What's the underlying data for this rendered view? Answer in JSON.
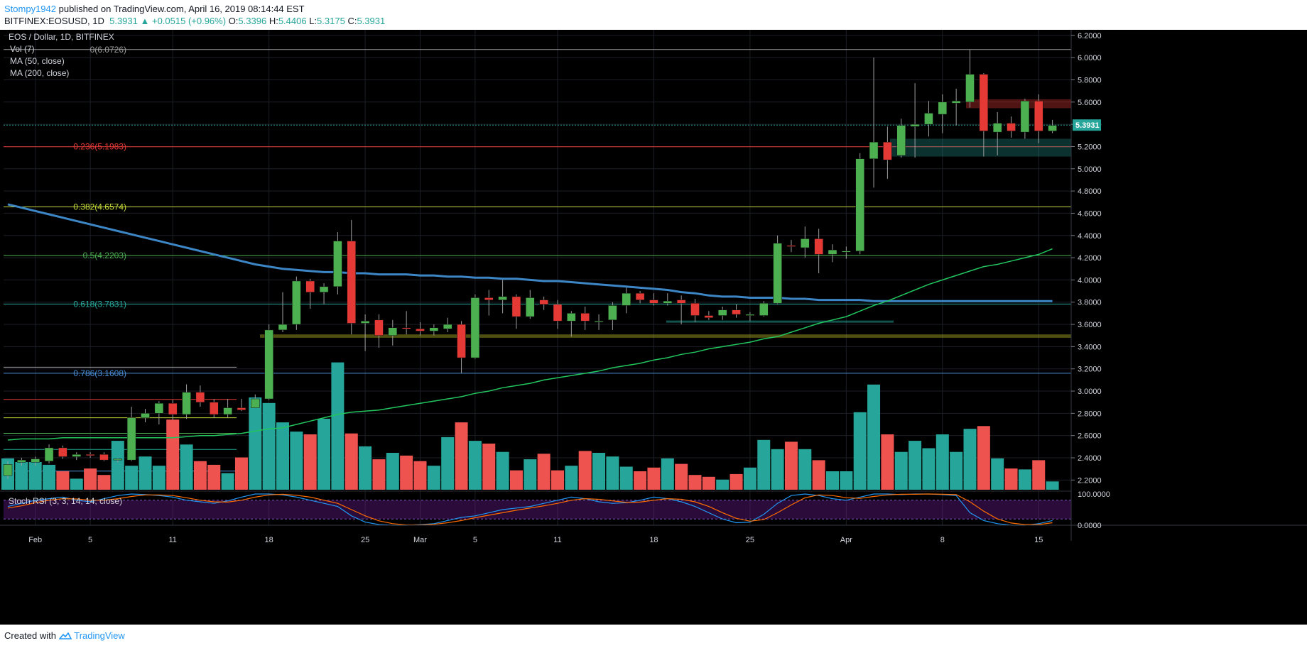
{
  "header": {
    "user": "Stompy1942",
    "published": " published on TradingView.com, April 16, 2019 08:14:44 EST",
    "symbol": "BITFINEX:EOSUSD, 1D",
    "last": "5.3931",
    "change": "▲ +0.0515 (+0.96%)",
    "o_label": "O:",
    "o": "5.3396",
    "h_label": "H:",
    "h": "5.4406",
    "l_label": "L:",
    "l": "5.3175",
    "c_label": "C:",
    "c": "5.3931"
  },
  "legend": {
    "title": "EOS / Dollar, 1D, BITFINEX",
    "vol": "Vol (7)",
    "ma50": "MA (50, close)",
    "ma200": "MA (200, close)",
    "stoch": "Stoch RSI (3, 3, 14, 14, close)"
  },
  "footer": {
    "created": "Created with",
    "brand": "TradingView"
  },
  "colors": {
    "background": "#000000",
    "up": "#4caf50",
    "down": "#e53935",
    "vol_up": "#26a69a",
    "vol_down": "#ef5350",
    "ma50": "#22c55e",
    "ma200": "#3d86c6",
    "price_tag": "#26a69a"
  },
  "chart_data": {
    "type": "candlestick",
    "title": "EOS / Dollar, 1D, BITFINEX",
    "ylim": [
      2.1,
      6.25
    ],
    "y_ticks": [
      "6.2000",
      "6.0000",
      "5.8000",
      "5.6000",
      "5.4000",
      "5.2000",
      "5.0000",
      "4.8000",
      "4.6000",
      "4.4000",
      "4.2000",
      "4.0000",
      "3.8000",
      "3.6000",
      "3.4000",
      "3.2000",
      "3.0000",
      "2.8000",
      "2.6000",
      "2.4000",
      "2.2000"
    ],
    "x_ticks": [
      {
        "label": "Feb",
        "index": 2
      },
      {
        "label": "5",
        "index": 6
      },
      {
        "label": "11",
        "index": 12
      },
      {
        "label": "18",
        "index": 19
      },
      {
        "label": "25",
        "index": 26
      },
      {
        "label": "Mar",
        "index": 30
      },
      {
        "label": "5",
        "index": 34
      },
      {
        "label": "11",
        "index": 40
      },
      {
        "label": "18",
        "index": 47
      },
      {
        "label": "25",
        "index": 54
      },
      {
        "label": "Apr",
        "index": 61
      },
      {
        "label": "8",
        "index": 68
      },
      {
        "label": "15",
        "index": 75
      }
    ],
    "current_price": "5.3931",
    "candles": [
      {
        "o": 2.24,
        "h": 2.37,
        "l": 2.21,
        "c": 2.34
      },
      {
        "o": 2.36,
        "h": 2.4,
        "l": 2.33,
        "c": 2.38
      },
      {
        "o": 2.36,
        "h": 2.41,
        "l": 2.33,
        "c": 2.39
      },
      {
        "o": 2.37,
        "h": 2.52,
        "l": 2.35,
        "c": 2.49
      },
      {
        "o": 2.49,
        "h": 2.51,
        "l": 2.39,
        "c": 2.41
      },
      {
        "o": 2.41,
        "h": 2.45,
        "l": 2.38,
        "c": 2.43
      },
      {
        "o": 2.43,
        "h": 2.45,
        "l": 2.4,
        "c": 2.42
      },
      {
        "o": 2.43,
        "h": 2.45,
        "l": 2.37,
        "c": 2.38
      },
      {
        "o": 2.38,
        "h": 2.4,
        "l": 2.36,
        "c": 2.39
      },
      {
        "o": 2.38,
        "h": 2.86,
        "l": 2.37,
        "c": 2.76
      },
      {
        "o": 2.76,
        "h": 2.84,
        "l": 2.72,
        "c": 2.8
      },
      {
        "o": 2.8,
        "h": 2.91,
        "l": 2.7,
        "c": 2.89
      },
      {
        "o": 2.89,
        "h": 2.92,
        "l": 2.74,
        "c": 2.79
      },
      {
        "o": 2.79,
        "h": 3.06,
        "l": 2.75,
        "c": 2.99
      },
      {
        "o": 2.99,
        "h": 3.05,
        "l": 2.86,
        "c": 2.9
      },
      {
        "o": 2.9,
        "h": 2.93,
        "l": 2.76,
        "c": 2.79
      },
      {
        "o": 2.79,
        "h": 2.93,
        "l": 2.76,
        "c": 2.85
      },
      {
        "o": 2.85,
        "h": 2.93,
        "l": 2.82,
        "c": 2.83
      },
      {
        "o": 2.85,
        "h": 2.97,
        "l": 2.85,
        "c": 2.93
      },
      {
        "o": 2.93,
        "h": 3.6,
        "l": 2.92,
        "c": 3.55
      },
      {
        "o": 3.55,
        "h": 3.89,
        "l": 3.53,
        "c": 3.6
      },
      {
        "o": 3.6,
        "h": 4.03,
        "l": 3.55,
        "c": 3.99
      },
      {
        "o": 3.99,
        "h": 4.01,
        "l": 3.74,
        "c": 3.89
      },
      {
        "o": 3.89,
        "h": 3.97,
        "l": 3.78,
        "c": 3.94
      },
      {
        "o": 3.94,
        "h": 4.43,
        "l": 3.87,
        "c": 4.35
      },
      {
        "o": 4.35,
        "h": 4.54,
        "l": 3.51,
        "c": 3.61
      },
      {
        "o": 3.61,
        "h": 3.69,
        "l": 3.36,
        "c": 3.63
      },
      {
        "o": 3.64,
        "h": 3.69,
        "l": 3.39,
        "c": 3.5
      },
      {
        "o": 3.5,
        "h": 3.64,
        "l": 3.41,
        "c": 3.57
      },
      {
        "o": 3.57,
        "h": 3.72,
        "l": 3.51,
        "c": 3.56
      },
      {
        "o": 3.56,
        "h": 3.62,
        "l": 3.5,
        "c": 3.54
      },
      {
        "o": 3.54,
        "h": 3.6,
        "l": 3.5,
        "c": 3.57
      },
      {
        "o": 3.56,
        "h": 3.66,
        "l": 3.53,
        "c": 3.6
      },
      {
        "o": 3.6,
        "h": 3.63,
        "l": 3.16,
        "c": 3.3
      },
      {
        "o": 3.3,
        "h": 3.87,
        "l": 3.29,
        "c": 3.84
      },
      {
        "o": 3.84,
        "h": 3.91,
        "l": 3.68,
        "c": 3.82
      },
      {
        "o": 3.82,
        "h": 4.0,
        "l": 3.7,
        "c": 3.85
      },
      {
        "o": 3.85,
        "h": 3.87,
        "l": 3.56,
        "c": 3.67
      },
      {
        "o": 3.67,
        "h": 3.91,
        "l": 3.65,
        "c": 3.84
      },
      {
        "o": 3.82,
        "h": 3.85,
        "l": 3.73,
        "c": 3.78
      },
      {
        "o": 3.78,
        "h": 3.82,
        "l": 3.56,
        "c": 3.63
      },
      {
        "o": 3.63,
        "h": 3.72,
        "l": 3.49,
        "c": 3.7
      },
      {
        "o": 3.7,
        "h": 3.76,
        "l": 3.55,
        "c": 3.63
      },
      {
        "o": 3.63,
        "h": 3.69,
        "l": 3.55,
        "c": 3.63
      },
      {
        "o": 3.64,
        "h": 3.8,
        "l": 3.55,
        "c": 3.77
      },
      {
        "o": 3.77,
        "h": 3.93,
        "l": 3.7,
        "c": 3.88
      },
      {
        "o": 3.88,
        "h": 3.9,
        "l": 3.79,
        "c": 3.82
      },
      {
        "o": 3.82,
        "h": 3.88,
        "l": 3.77,
        "c": 3.79
      },
      {
        "o": 3.79,
        "h": 3.88,
        "l": 3.77,
        "c": 3.81
      },
      {
        "o": 3.82,
        "h": 3.86,
        "l": 3.6,
        "c": 3.79
      },
      {
        "o": 3.79,
        "h": 3.83,
        "l": 3.62,
        "c": 3.68
      },
      {
        "o": 3.68,
        "h": 3.72,
        "l": 3.64,
        "c": 3.66
      },
      {
        "o": 3.68,
        "h": 3.76,
        "l": 3.64,
        "c": 3.73
      },
      {
        "o": 3.73,
        "h": 3.78,
        "l": 3.66,
        "c": 3.69
      },
      {
        "o": 3.68,
        "h": 3.71,
        "l": 3.63,
        "c": 3.69
      },
      {
        "o": 3.68,
        "h": 3.81,
        "l": 3.67,
        "c": 3.79
      },
      {
        "o": 3.79,
        "h": 4.4,
        "l": 3.78,
        "c": 4.33
      },
      {
        "o": 4.31,
        "h": 4.36,
        "l": 4.25,
        "c": 4.3
      },
      {
        "o": 4.29,
        "h": 4.48,
        "l": 4.2,
        "c": 4.37
      },
      {
        "o": 4.37,
        "h": 4.46,
        "l": 4.06,
        "c": 4.23
      },
      {
        "o": 4.23,
        "h": 4.32,
        "l": 4.16,
        "c": 4.27
      },
      {
        "o": 4.25,
        "h": 4.3,
        "l": 4.19,
        "c": 4.26
      },
      {
        "o": 4.26,
        "h": 5.14,
        "l": 4.23,
        "c": 5.09
      },
      {
        "o": 5.09,
        "h": 6.0,
        "l": 4.83,
        "c": 5.24
      },
      {
        "o": 5.24,
        "h": 5.38,
        "l": 4.91,
        "c": 5.08
      },
      {
        "o": 5.12,
        "h": 5.45,
        "l": 5.1,
        "c": 5.39
      },
      {
        "o": 5.38,
        "h": 5.77,
        "l": 5.1,
        "c": 5.4
      },
      {
        "o": 5.4,
        "h": 5.61,
        "l": 5.29,
        "c": 5.5
      },
      {
        "o": 5.49,
        "h": 5.67,
        "l": 5.32,
        "c": 5.6
      },
      {
        "o": 5.59,
        "h": 5.72,
        "l": 5.39,
        "c": 5.61
      },
      {
        "o": 5.6,
        "h": 6.07,
        "l": 5.55,
        "c": 5.85
      },
      {
        "o": 5.85,
        "h": 5.86,
        "l": 5.11,
        "c": 5.34
      },
      {
        "o": 5.33,
        "h": 5.51,
        "l": 5.12,
        "c": 5.41
      },
      {
        "o": 5.41,
        "h": 5.47,
        "l": 5.28,
        "c": 5.34
      },
      {
        "o": 5.33,
        "h": 5.63,
        "l": 5.27,
        "c": 5.61
      },
      {
        "o": 5.61,
        "h": 5.67,
        "l": 5.23,
        "c": 5.34
      },
      {
        "o": 5.34,
        "h": 5.44,
        "l": 5.32,
        "c": 5.39
      }
    ],
    "volume_relative": [
      0.34,
      0.3,
      0.3,
      0.27,
      0.2,
      0.12,
      0.23,
      0.16,
      0.53,
      0.26,
      0.36,
      0.26,
      0.76,
      0.49,
      0.31,
      0.27,
      0.18,
      0.35,
      1.0,
      0.94,
      0.73,
      0.63,
      0.6,
      0.77,
      1.38,
      0.61,
      0.47,
      0.33,
      0.4,
      0.37,
      0.31,
      0.26,
      0.57,
      0.73,
      0.53,
      0.5,
      0.41,
      0.21,
      0.33,
      0.39,
      0.21,
      0.26,
      0.42,
      0.4,
      0.36,
      0.25,
      0.2,
      0.24,
      0.34,
      0.28,
      0.16,
      0.14,
      0.11,
      0.17,
      0.24,
      0.54,
      0.44,
      0.52,
      0.44,
      0.32,
      0.2,
      0.2,
      0.84,
      1.14,
      0.6,
      0.41,
      0.53,
      0.45,
      0.6,
      0.41,
      0.66,
      0.69,
      0.34,
      0.23,
      0.22,
      0.32,
      0.09
    ],
    "ma200": [
      4.68,
      4.65,
      4.62,
      4.59,
      4.56,
      4.53,
      4.5,
      4.47,
      4.44,
      4.41,
      4.38,
      4.35,
      4.32,
      4.29,
      4.26,
      4.23,
      4.2,
      4.17,
      4.14,
      4.12,
      4.1,
      4.09,
      4.08,
      4.07,
      4.07,
      4.06,
      4.06,
      4.05,
      4.05,
      4.05,
      4.04,
      4.04,
      4.03,
      4.03,
      4.02,
      4.02,
      4.01,
      4.01,
      4.0,
      3.99,
      3.99,
      3.98,
      3.97,
      3.96,
      3.95,
      3.94,
      3.93,
      3.92,
      3.91,
      3.89,
      3.88,
      3.86,
      3.85,
      3.85,
      3.84,
      3.84,
      3.84,
      3.83,
      3.83,
      3.82,
      3.82,
      3.82,
      3.82,
      3.81,
      3.81,
      3.81,
      3.81,
      3.81,
      3.81,
      3.81,
      3.81,
      3.81,
      3.81,
      3.81,
      3.81,
      3.81,
      3.81
    ],
    "ma50": [
      2.56,
      2.57,
      2.57,
      2.57,
      2.58,
      2.58,
      2.58,
      2.58,
      2.58,
      2.58,
      2.58,
      2.58,
      2.58,
      2.59,
      2.6,
      2.6,
      2.61,
      2.62,
      2.64,
      2.66,
      2.67,
      2.7,
      2.73,
      2.76,
      2.79,
      2.81,
      2.82,
      2.83,
      2.85,
      2.87,
      2.89,
      2.91,
      2.93,
      2.95,
      2.98,
      3.0,
      3.03,
      3.05,
      3.07,
      3.1,
      3.12,
      3.14,
      3.16,
      3.18,
      3.21,
      3.23,
      3.25,
      3.28,
      3.3,
      3.33,
      3.35,
      3.38,
      3.4,
      3.42,
      3.44,
      3.47,
      3.49,
      3.53,
      3.57,
      3.61,
      3.64,
      3.67,
      3.72,
      3.77,
      3.81,
      3.86,
      3.91,
      3.96,
      4.0,
      4.04,
      4.08,
      4.12,
      4.14,
      4.17,
      4.2,
      4.23,
      4.28
    ],
    "fibonacci": [
      {
        "level": "0",
        "value": 6.0726,
        "text": "0(6.0726)",
        "color": "#9e9e9e"
      },
      {
        "level": "0.236",
        "value": 5.1983,
        "text": "0.236(5.1983)",
        "color": "#e53935"
      },
      {
        "level": "0.382",
        "value": 4.6574,
        "text": "0.382(4.6574)",
        "color": "#c6d93a"
      },
      {
        "level": "0.5",
        "value": 4.2203,
        "text": "0.5(4.2203)",
        "color": "#4caf50"
      },
      {
        "level": "0.618",
        "value": 3.7831,
        "text": "0.618(3.7831)",
        "color": "#26a69a"
      },
      {
        "level": "0.786",
        "value": 3.1608,
        "text": "0.786(3.1608)",
        "color": "#4a90d9"
      }
    ],
    "stoch_rsi": {
      "ylim": [
        0,
        100
      ],
      "ticks": [
        "100.0000",
        "0.0000"
      ],
      "k": [
        60,
        70,
        80,
        85,
        90,
        80,
        75,
        85,
        95,
        100,
        98,
        95,
        90,
        80,
        75,
        70,
        78,
        90,
        100,
        100,
        97,
        90,
        80,
        70,
        60,
        30,
        10,
        2,
        0,
        0,
        2,
        5,
        15,
        25,
        30,
        40,
        50,
        55,
        60,
        70,
        80,
        90,
        85,
        75,
        70,
        72,
        80,
        90,
        85,
        75,
        60,
        40,
        20,
        8,
        10,
        35,
        70,
        95,
        100,
        95,
        85,
        80,
        90,
        100,
        100,
        98,
        100,
        100,
        98,
        95,
        40,
        15,
        5,
        0,
        0,
        5,
        15
      ],
      "d": [
        55,
        62,
        72,
        80,
        85,
        84,
        80,
        80,
        85,
        92,
        97,
        97,
        95,
        88,
        80,
        75,
        74,
        80,
        90,
        97,
        99,
        96,
        90,
        80,
        70,
        50,
        30,
        14,
        5,
        1,
        1,
        3,
        8,
        15,
        24,
        32,
        40,
        48,
        55,
        62,
        70,
        80,
        85,
        83,
        78,
        73,
        74,
        80,
        85,
        83,
        75,
        60,
        40,
        22,
        13,
        18,
        40,
        65,
        88,
        97,
        95,
        88,
        86,
        92,
        97,
        99,
        99,
        100,
        99,
        98,
        75,
        45,
        20,
        7,
        2,
        2,
        8
      ]
    }
  }
}
